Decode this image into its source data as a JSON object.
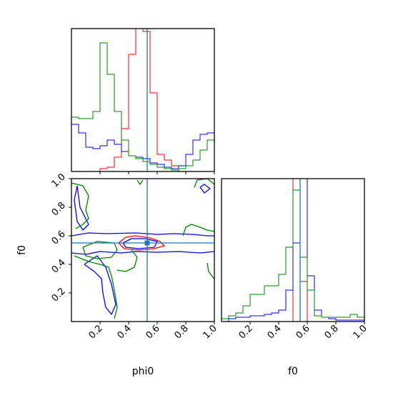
{
  "colors": {
    "red": "#ff0000",
    "blue": "#0000ff",
    "green": "#008000",
    "truth": "#1f77b4",
    "frame": "#000000"
  },
  "chart_data": [
    {
      "type": "histogram",
      "panel": "phi0-marginal",
      "x_range": [
        0,
        1
      ],
      "y_range": [
        0,
        1
      ],
      "ticks_hidden": true,
      "truth": 0.53,
      "series": [
        {
          "color": "red",
          "bins": [
            0.2,
            0.25,
            0.3,
            0.35,
            0.4,
            0.45,
            0.5,
            0.55,
            0.6,
            0.65,
            0.7,
            0.75
          ],
          "values": [
            0.02,
            0.03,
            0.1,
            0.3,
            0.82,
            1.0,
            0.98,
            0.55,
            0.12,
            0.08,
            0.04
          ]
        },
        {
          "color": "blue",
          "bins": [
            0,
            0.05,
            0.1,
            0.15,
            0.2,
            0.25,
            0.3,
            0.35,
            0.4,
            0.45,
            0.5,
            0.55,
            0.6,
            0.65,
            0.7,
            0.75,
            0.8,
            0.85,
            0.9,
            0.95,
            1.0
          ],
          "values": [
            0.33,
            0.27,
            0.17,
            0.16,
            0.18,
            0.22,
            0.19,
            0.14,
            0.11,
            0.1,
            0.09,
            0.06,
            0.05,
            0.03,
            0.02,
            0.04,
            0.12,
            0.22,
            0.26,
            0.27
          ]
        },
        {
          "color": "green",
          "bins": [
            0,
            0.05,
            0.1,
            0.15,
            0.2,
            0.25,
            0.3,
            0.35,
            0.4,
            0.45,
            0.5,
            0.55,
            0.6,
            0.65,
            0.7,
            0.75,
            0.8,
            0.85,
            0.9,
            0.95,
            1.0
          ],
          "values": [
            0.38,
            0.37,
            0.37,
            0.42,
            0.9,
            0.68,
            0.42,
            0.22,
            0.11,
            0.09,
            0.07,
            0.05,
            0.03,
            0.02,
            0.01,
            0.02,
            0.04,
            0.08,
            0.15,
            0.22
          ]
        }
      ]
    },
    {
      "type": "contour",
      "panel": "phi0-f0-2d",
      "x_range": [
        0,
        1
      ],
      "y_range": [
        0,
        1
      ],
      "xlabel": "phi0",
      "ylabel": "f0",
      "x_ticks": [
        "0.2",
        "0.4",
        "0.6",
        "0.8",
        "1.0"
      ],
      "y_ticks": [
        "0.2",
        "0.4",
        "0.6",
        "0.8",
        "1.0"
      ],
      "truth": [
        0.53,
        0.55
      ],
      "series": [
        {
          "color": "red",
          "contours": [
            [
              [
                0.33,
                0.55
              ],
              [
                0.38,
                0.59
              ],
              [
                0.45,
                0.6
              ],
              [
                0.55,
                0.585
              ],
              [
                0.62,
                0.56
              ],
              [
                0.65,
                0.53
              ],
              [
                0.58,
                0.51
              ],
              [
                0.47,
                0.5
              ],
              [
                0.37,
                0.51
              ],
              [
                0.33,
                0.55
              ]
            ]
          ]
        },
        {
          "color": "blue",
          "contours": [
            [
              [
                0.0,
                0.6
              ],
              [
                0.12,
                0.62
              ],
              [
                0.25,
                0.615
              ],
              [
                0.45,
                0.62
              ],
              [
                0.6,
                0.61
              ],
              [
                0.72,
                0.615
              ],
              [
                0.85,
                0.61
              ],
              [
                0.95,
                0.6
              ],
              [
                1.0,
                0.6
              ]
            ],
            [
              [
                0.0,
                0.48
              ],
              [
                0.1,
                0.47
              ],
              [
                0.2,
                0.49
              ],
              [
                0.35,
                0.48
              ],
              [
                0.45,
                0.49
              ],
              [
                0.6,
                0.485
              ],
              [
                0.75,
                0.49
              ],
              [
                0.9,
                0.48
              ],
              [
                1.0,
                0.49
              ]
            ],
            [
              [
                0.36,
                0.55
              ],
              [
                0.42,
                0.58
              ],
              [
                0.52,
                0.58
              ],
              [
                0.6,
                0.56
              ],
              [
                0.58,
                0.52
              ],
              [
                0.47,
                0.51
              ],
              [
                0.38,
                0.52
              ],
              [
                0.36,
                0.55
              ]
            ],
            [
              [
                0.04,
                0.95
              ],
              [
                0.06,
                0.8
              ],
              [
                0.1,
                0.72
              ],
              [
                0.12,
                0.68
              ],
              [
                0.08,
                0.64
              ],
              [
                0.04,
                0.7
              ],
              [
                0.02,
                0.85
              ],
              [
                0.04,
                0.95
              ]
            ],
            [
              [
                0.09,
                0.4
              ],
              [
                0.16,
                0.35
              ],
              [
                0.21,
                0.3
              ],
              [
                0.22,
                0.2
              ],
              [
                0.24,
                0.1
              ],
              [
                0.28,
                0.05
              ],
              [
                0.31,
                0.12
              ],
              [
                0.28,
                0.26
              ],
              [
                0.24,
                0.38
              ],
              [
                0.18,
                0.46
              ],
              [
                0.09,
                0.4
              ]
            ],
            [
              [
                0.9,
                0.94
              ],
              [
                0.93,
                0.96
              ],
              [
                0.97,
                0.93
              ],
              [
                0.93,
                0.9
              ],
              [
                0.9,
                0.94
              ]
            ]
          ]
        },
        {
          "color": "green",
          "contours": [
            [
              [
                0.0,
                0.97
              ],
              [
                0.08,
                0.95
              ],
              [
                0.12,
                0.88
              ],
              [
                0.1,
                0.78
              ],
              [
                0.12,
                0.72
              ],
              [
                0.08,
                0.68
              ],
              [
                0.03,
                0.65
              ]
            ],
            [
              [
                0.02,
                0.46
              ],
              [
                0.12,
                0.42
              ],
              [
                0.2,
                0.4
              ],
              [
                0.26,
                0.38
              ],
              [
                0.28,
                0.32
              ],
              [
                0.3,
                0.22
              ],
              [
                0.32,
                0.1
              ],
              [
                0.3,
                0.02
              ]
            ],
            [
              [
                0.08,
                0.52
              ],
              [
                0.18,
                0.56
              ],
              [
                0.3,
                0.55
              ],
              [
                0.32,
                0.5
              ],
              [
                0.28,
                0.45
              ],
              [
                0.18,
                0.44
              ],
              [
                0.1,
                0.46
              ],
              [
                0.08,
                0.52
              ]
            ],
            [
              [
                0.42,
                0.5
              ],
              [
                0.46,
                0.45
              ],
              [
                0.44,
                0.38
              ],
              [
                0.38,
                0.35
              ],
              [
                0.32,
                0.36
              ]
            ],
            [
              [
                0.78,
                0.6
              ],
              [
                0.8,
                0.66
              ],
              [
                0.84,
                0.68
              ],
              [
                0.9,
                0.66
              ],
              [
                0.95,
                0.64
              ],
              [
                1.0,
                0.63
              ]
            ],
            [
              [
                0.86,
                0.94
              ],
              [
                0.88,
                0.99
              ],
              [
                0.95,
                1.0
              ],
              [
                1.0,
                0.96
              ]
            ],
            [
              [
                0.95,
                0.41
              ],
              [
                0.96,
                0.35
              ],
              [
                0.99,
                0.31
              ],
              [
                1.0,
                0.3
              ]
            ],
            [
              [
                0.46,
                0.99
              ],
              [
                0.48,
                0.96
              ],
              [
                0.5,
                0.99
              ]
            ]
          ]
        }
      ]
    },
    {
      "type": "histogram",
      "panel": "f0-marginal",
      "x_range": [
        0,
        1
      ],
      "y_range": [
        0,
        1
      ],
      "xlabel": "f0",
      "x_ticks": [
        "0.2",
        "0.4",
        "0.6",
        "0.8",
        "1.0"
      ],
      "truth": 0.55,
      "series": [
        {
          "color": "red",
          "bins": [
            0.45,
            0.5,
            0.55,
            0.6,
            0.65
          ],
          "values": [
            0.0,
            1.0,
            0.28,
            0.0
          ]
        },
        {
          "color": "blue",
          "bins": [
            0,
            0.05,
            0.1,
            0.15,
            0.2,
            0.25,
            0.3,
            0.35,
            0.4,
            0.45,
            0.5,
            0.55,
            0.6,
            0.65,
            0.7,
            0.75,
            0.8,
            0.85,
            0.9,
            0.95,
            1.0
          ],
          "values": [
            0.0,
            0.02,
            0.03,
            0.03,
            0.04,
            0.04,
            0.05,
            0.06,
            0.08,
            0.22,
            0.55,
            1.0,
            0.32,
            0.08,
            0.03,
            0.02,
            0.01,
            0.01,
            0.01,
            0.01
          ]
        },
        {
          "color": "green",
          "bins": [
            0,
            0.05,
            0.1,
            0.15,
            0.2,
            0.25,
            0.3,
            0.35,
            0.4,
            0.45,
            0.5,
            0.55,
            0.6,
            0.65,
            0.7,
            0.75,
            0.8,
            0.85,
            0.9,
            0.95,
            1.0
          ],
          "values": [
            0.02,
            0.04,
            0.06,
            0.11,
            0.19,
            0.19,
            0.25,
            0.25,
            0.33,
            0.52,
            0.92,
            0.45,
            0.22,
            0.04,
            0.03,
            0.03,
            0.03,
            0.03,
            0.05,
            0.03
          ]
        }
      ]
    }
  ]
}
